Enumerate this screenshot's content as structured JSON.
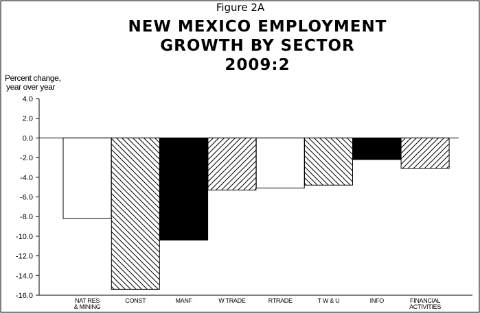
{
  "figure_label": "Figure 2A",
  "title_lines": [
    "NEW MEXICO EMPLOYMENT",
    "GROWTH BY SECTOR",
    "2009:2"
  ],
  "ylabel_lines": [
    "Percent change,",
    "year over year"
  ],
  "chart_data": {
    "type": "bar",
    "title": "NEW MEXICO EMPLOYMENT GROWTH BY SECTOR 2009:2",
    "ylabel": "Percent change, year over year",
    "xlabel": "",
    "ylim": [
      -16.0,
      4.0
    ],
    "yticks": [
      "4.0",
      "2.0",
      "0.0",
      "-2.0",
      "-4.0",
      "-6.0",
      "-8.0",
      "-10.0",
      "-12.0",
      "-14.0",
      "-16.0"
    ],
    "grid": false,
    "categories": [
      [
        "NAT RES",
        "& MINING"
      ],
      [
        "CONST"
      ],
      [
        "MANF"
      ],
      [
        "W TRADE"
      ],
      [
        "RTRADE"
      ],
      [
        "T W & U"
      ],
      [
        "INFO"
      ],
      [
        "FINANCIAL",
        "ACTIVITIES"
      ]
    ],
    "values": [
      -8.2,
      -15.4,
      -10.4,
      -5.3,
      -5.1,
      -4.8,
      -2.2,
      -3.1
    ],
    "fills": [
      "white",
      "hatch-back",
      "black",
      "hatch-fwd",
      "white",
      "hatch-back",
      "black",
      "hatch-fwd"
    ]
  }
}
